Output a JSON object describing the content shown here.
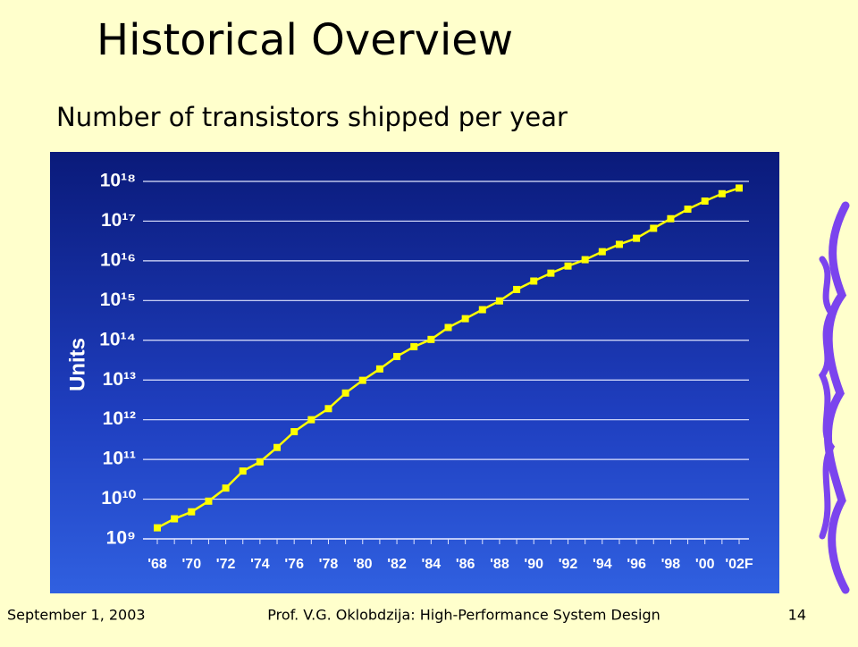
{
  "chart_data": {
    "type": "line",
    "title": "Historical Overview",
    "subtitle": "Number of transistors shipped per year",
    "y_label": "Units",
    "categories": [
      "'68",
      null,
      "'70",
      null,
      "'72",
      null,
      "'74",
      null,
      "'76",
      null,
      "'78",
      null,
      "'80",
      null,
      "'82",
      null,
      "'84",
      null,
      "'86",
      null,
      "'88",
      null,
      "'90",
      null,
      "'92",
      null,
      "'94",
      null,
      "'96",
      null,
      "'98",
      null,
      "'00",
      null,
      "'02F"
    ],
    "values": [
      1900000000.0,
      3200000000.0,
      4800000000.0,
      8900000000.0,
      19000000000.0,
      51000000000.0,
      87000000000.0,
      200000000000.0,
      500000000000.0,
      1000000000000.0,
      1900000000000.0,
      4700000000000.0,
      9800000000000.0,
      19000000000000.0,
      39000000000000.0,
      69000000000000.0,
      105000000000000.0,
      210000000000000.0,
      350000000000000.0,
      590000000000000.0,
      980000000000000.0,
      1900000000000000.0,
      3100000000000000.0,
      4900000000000000.0,
      7400000000000000.0,
      1.07e+16,
      1.7e+16,
      2.6e+16,
      3.7e+16,
      6.6e+16,
      1.15e+17,
      2e+17,
      3.2e+17,
      4.9e+17,
      6.8e+17
    ],
    "color": "#ffff00",
    "yscale": "log",
    "ylim": [
      1000000000.0,
      1e+18
    ],
    "yticks": [
      {
        "value": 1000000000.0,
        "label": "10⁹"
      },
      {
        "value": 10000000000.0,
        "label": "10¹⁰"
      },
      {
        "value": 100000000000.0,
        "label": "10¹¹"
      },
      {
        "value": 1000000000000.0,
        "label": "10¹²"
      },
      {
        "value": 10000000000000.0,
        "label": "10¹³"
      },
      {
        "value": 100000000000000.0,
        "label": "10¹⁴"
      },
      {
        "value": 1000000000000000.0,
        "label": "10¹⁵"
      },
      {
        "value": 1e+16,
        "label": "10¹⁶"
      },
      {
        "value": 1e+17,
        "label": "10¹⁷"
      },
      {
        "value": 1e+18,
        "label": "10¹⁸"
      }
    ],
    "grid": true
  },
  "footer": {
    "date": "September 1, 2003",
    "author": "Prof. V.G. Oklobdzija: High-Performance System Design",
    "page": "14"
  }
}
